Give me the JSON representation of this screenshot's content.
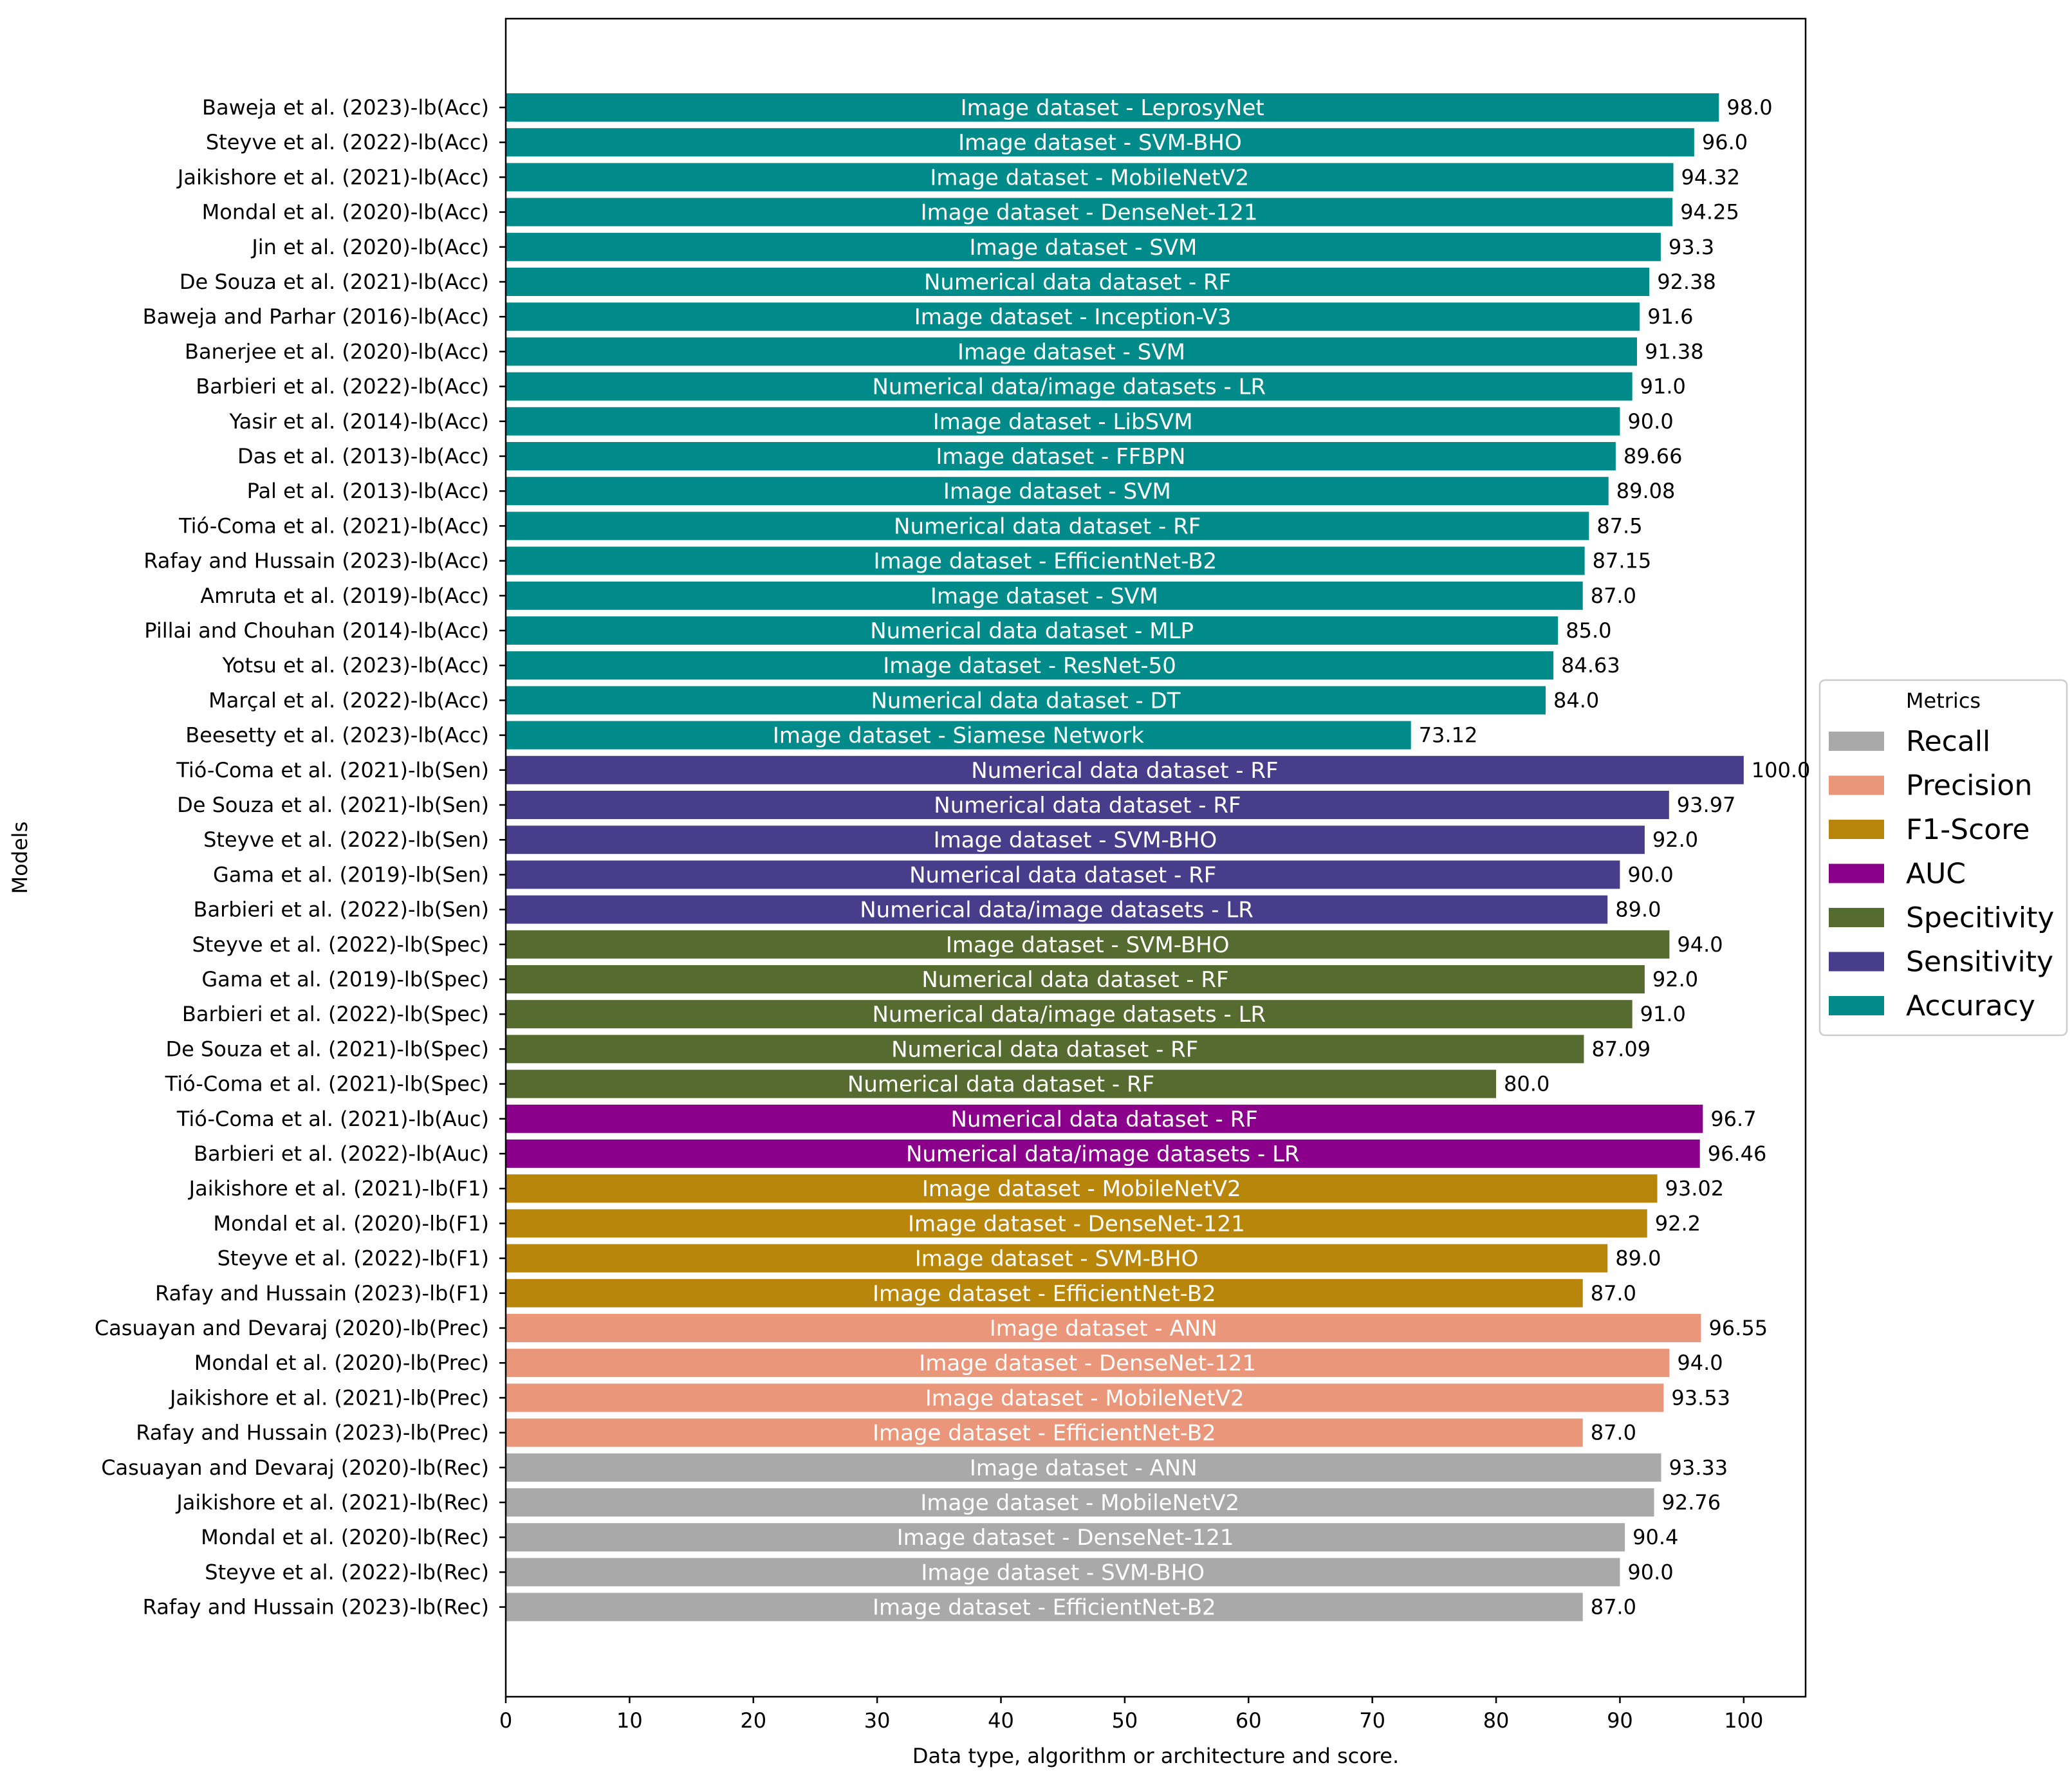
{
  "chart_data": {
    "type": "bar",
    "orientation": "horizontal",
    "xlabel": "Data type, algorithm or architecture and score.",
    "ylabel": "Models",
    "xlim": [
      0,
      105
    ],
    "xticks": [
      0,
      10,
      20,
      30,
      40,
      50,
      60,
      70,
      80,
      90,
      100
    ],
    "grid": false,
    "legend": {
      "title": "Metrics",
      "position": "center-right",
      "entries": [
        {
          "label": "Recall",
          "color": "#a9a9a9"
        },
        {
          "label": "Precision",
          "color": "#e9967a"
        },
        {
          "label": "F1-Score",
          "color": "#b8860b"
        },
        {
          "label": "AUC",
          "color": "#8b008b"
        },
        {
          "label": "Specitivity",
          "color": "#556b2f"
        },
        {
          "label": "Sensitivity",
          "color": "#483d8b"
        },
        {
          "label": "Accuracy",
          "color": "#008b8b"
        }
      ]
    },
    "bars": [
      {
        "model": "Baweja et al. (2023)-lb(Acc)",
        "value": 98.0,
        "value_label": "98.0",
        "label": "Image dataset - LeprosyNet",
        "metric": "Accuracy"
      },
      {
        "model": "Steyve et al. (2022)-lb(Acc)",
        "value": 96.0,
        "value_label": "96.0",
        "label": "Image dataset - SVM-BHO",
        "metric": "Accuracy"
      },
      {
        "model": "Jaikishore et al. (2021)-lb(Acc)",
        "value": 94.32,
        "value_label": "94.32",
        "label": "Image dataset - MobileNetV2",
        "metric": "Accuracy"
      },
      {
        "model": "Mondal et al. (2020)-lb(Acc)",
        "value": 94.25,
        "value_label": "94.25",
        "label": "Image dataset - DenseNet-121",
        "metric": "Accuracy"
      },
      {
        "model": "Jin et al. (2020)-lb(Acc)",
        "value": 93.3,
        "value_label": "93.3",
        "label": "Image dataset - SVM",
        "metric": "Accuracy"
      },
      {
        "model": "De Souza et al. (2021)-lb(Acc)",
        "value": 92.38,
        "value_label": "92.38",
        "label": "Numerical data dataset - RF",
        "metric": "Accuracy"
      },
      {
        "model": "Baweja and Parhar (2016)-lb(Acc)",
        "value": 91.6,
        "value_label": "91.6",
        "label": "Image dataset - Inception-V3",
        "metric": "Accuracy"
      },
      {
        "model": "Banerjee et al. (2020)-lb(Acc)",
        "value": 91.38,
        "value_label": "91.38",
        "label": "Image dataset - SVM",
        "metric": "Accuracy"
      },
      {
        "model": "Barbieri et al. (2022)-lb(Acc)",
        "value": 91.0,
        "value_label": "91.0",
        "label": "Numerical data/image datasets - LR",
        "metric": "Accuracy"
      },
      {
        "model": "Yasir et al. (2014)-lb(Acc)",
        "value": 90.0,
        "value_label": "90.0",
        "label": "Image dataset - LibSVM",
        "metric": "Accuracy"
      },
      {
        "model": "Das et al. (2013)-lb(Acc)",
        "value": 89.66,
        "value_label": "89.66",
        "label": "Image dataset - FFBPN",
        "metric": "Accuracy"
      },
      {
        "model": "Pal et al. (2013)-lb(Acc)",
        "value": 89.08,
        "value_label": "89.08",
        "label": "Image dataset - SVM",
        "metric": "Accuracy"
      },
      {
        "model": "Tió-Coma et al. (2021)-lb(Acc)",
        "value": 87.5,
        "value_label": "87.5",
        "label": "Numerical data dataset - RF",
        "metric": "Accuracy"
      },
      {
        "model": "Rafay and Hussain (2023)-lb(Acc)",
        "value": 87.15,
        "value_label": "87.15",
        "label": "Image dataset - EfficientNet-B2",
        "metric": "Accuracy"
      },
      {
        "model": "Amruta et al. (2019)-lb(Acc)",
        "value": 87.0,
        "value_label": "87.0",
        "label": "Image dataset - SVM",
        "metric": "Accuracy"
      },
      {
        "model": "Pillai and Chouhan (2014)-lb(Acc)",
        "value": 85.0,
        "value_label": "85.0",
        "label": "Numerical data dataset - MLP",
        "metric": "Accuracy"
      },
      {
        "model": "Yotsu et al. (2023)-lb(Acc)",
        "value": 84.63,
        "value_label": "84.63",
        "label": "Image dataset - ResNet-50",
        "metric": "Accuracy"
      },
      {
        "model": "Marçal et al. (2022)-lb(Acc)",
        "value": 84.0,
        "value_label": "84.0",
        "label": "Numerical data dataset - DT",
        "metric": "Accuracy"
      },
      {
        "model": "Beesetty et al. (2023)-lb(Acc)",
        "value": 73.12,
        "value_label": "73.12",
        "label": "Image dataset - Siamese Network",
        "metric": "Accuracy"
      },
      {
        "model": "Tió-Coma et al. (2021)-lb(Sen)",
        "value": 100.0,
        "value_label": "100.0",
        "label": "Numerical data dataset - RF",
        "metric": "Sensitivity"
      },
      {
        "model": "De Souza et al. (2021)-lb(Sen)",
        "value": 93.97,
        "value_label": "93.97",
        "label": "Numerical data dataset - RF",
        "metric": "Sensitivity"
      },
      {
        "model": "Steyve et al. (2022)-lb(Sen)",
        "value": 92.0,
        "value_label": "92.0",
        "label": "Image dataset - SVM-BHO",
        "metric": "Sensitivity"
      },
      {
        "model": "Gama et al. (2019)-lb(Sen)",
        "value": 90.0,
        "value_label": "90.0",
        "label": "Numerical data dataset - RF",
        "metric": "Sensitivity"
      },
      {
        "model": "Barbieri et al. (2022)-lb(Sen)",
        "value": 89.0,
        "value_label": "89.0",
        "label": "Numerical data/image datasets - LR",
        "metric": "Sensitivity"
      },
      {
        "model": "Steyve et al. (2022)-lb(Spec)",
        "value": 94.0,
        "value_label": "94.0",
        "label": "Image dataset - SVM-BHO",
        "metric": "Specitivity"
      },
      {
        "model": "Gama et al. (2019)-lb(Spec)",
        "value": 92.0,
        "value_label": "92.0",
        "label": "Numerical data dataset - RF",
        "metric": "Specitivity"
      },
      {
        "model": "Barbieri et al. (2022)-lb(Spec)",
        "value": 91.0,
        "value_label": "91.0",
        "label": "Numerical data/image datasets - LR",
        "metric": "Specitivity"
      },
      {
        "model": "De Souza et al. (2021)-lb(Spec)",
        "value": 87.09,
        "value_label": "87.09",
        "label": "Numerical data dataset - RF",
        "metric": "Specitivity"
      },
      {
        "model": "Tió-Coma et al. (2021)-lb(Spec)",
        "value": 80.0,
        "value_label": "80.0",
        "label": "Numerical data dataset - RF",
        "metric": "Specitivity"
      },
      {
        "model": "Tió-Coma et al. (2021)-lb(Auc)",
        "value": 96.7,
        "value_label": "96.7",
        "label": "Numerical data dataset - RF",
        "metric": "AUC"
      },
      {
        "model": "Barbieri et al. (2022)-lb(Auc)",
        "value": 96.46,
        "value_label": "96.46",
        "label": "Numerical data/image datasets - LR",
        "metric": "AUC"
      },
      {
        "model": "Jaikishore et al. (2021)-lb(F1)",
        "value": 93.02,
        "value_label": "93.02",
        "label": "Image dataset - MobileNetV2",
        "metric": "F1-Score"
      },
      {
        "model": "Mondal et al. (2020)-lb(F1)",
        "value": 92.2,
        "value_label": "92.2",
        "label": "Image dataset - DenseNet-121",
        "metric": "F1-Score"
      },
      {
        "model": "Steyve et al. (2022)-lb(F1)",
        "value": 89.0,
        "value_label": "89.0",
        "label": "Image dataset - SVM-BHO",
        "metric": "F1-Score"
      },
      {
        "model": "Rafay and Hussain (2023)-lb(F1)",
        "value": 87.0,
        "value_label": "87.0",
        "label": "Image dataset - EfficientNet-B2",
        "metric": "F1-Score"
      },
      {
        "model": "Casuayan and Devaraj (2020)-lb(Prec)",
        "value": 96.55,
        "value_label": "96.55",
        "label": "Image dataset - ANN",
        "metric": "Precision"
      },
      {
        "model": "Mondal et al. (2020)-lb(Prec)",
        "value": 94.0,
        "value_label": "94.0",
        "label": "Image dataset - DenseNet-121",
        "metric": "Precision"
      },
      {
        "model": "Jaikishore et al. (2021)-lb(Prec)",
        "value": 93.53,
        "value_label": "93.53",
        "label": "Image dataset - MobileNetV2",
        "metric": "Precision"
      },
      {
        "model": "Rafay and Hussain (2023)-lb(Prec)",
        "value": 87.0,
        "value_label": "87.0",
        "label": "Image dataset - EfficientNet-B2",
        "metric": "Precision"
      },
      {
        "model": "Casuayan and Devaraj (2020)-lb(Rec)",
        "value": 93.33,
        "value_label": "93.33",
        "label": "Image dataset - ANN",
        "metric": "Recall"
      },
      {
        "model": "Jaikishore et al. (2021)-lb(Rec)",
        "value": 92.76,
        "value_label": "92.76",
        "label": "Image dataset - MobileNetV2",
        "metric": "Recall"
      },
      {
        "model": "Mondal et al. (2020)-lb(Rec)",
        "value": 90.4,
        "value_label": "90.4",
        "label": "Image dataset - DenseNet-121",
        "metric": "Recall"
      },
      {
        "model": "Steyve et al. (2022)-lb(Rec)",
        "value": 90.0,
        "value_label": "90.0",
        "label": "Image dataset - SVM-BHO",
        "metric": "Recall"
      },
      {
        "model": "Rafay and Hussain (2023)-lb(Rec)",
        "value": 87.0,
        "value_label": "87.0",
        "label": "Image dataset - EfficientNet-B2",
        "metric": "Recall"
      }
    ]
  }
}
